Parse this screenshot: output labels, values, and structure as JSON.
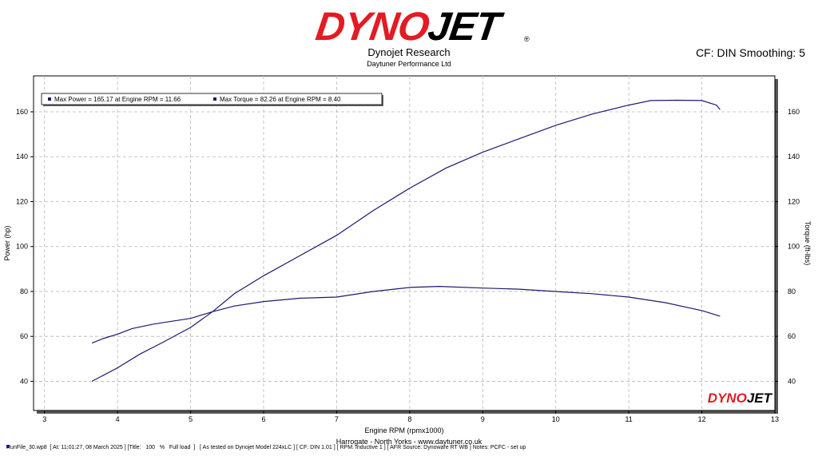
{
  "header": {
    "brand": "DYNOJET",
    "company": "Dynojet Research",
    "subcompany": "Daytuner Performance Ltd",
    "settings": "CF: DIN Smoothing: 5"
  },
  "footer": {
    "location": "Harrogate - North Yorks - www.daytuner.co.uk",
    "info": "RunFile_30.wp8  [ At: 11:01:27, 08 March 2025 ] [Title:   100   %   Full load  ]   [ As tested on Dynojet Model 224xLC ] [ CF: DIN 1.01 ] [ RPM: Inductive 1 ] [ AFR Source: Dynoware RT WB ] Notes: PCFC - set up"
  },
  "colors": {
    "brand_red": "#e31b23",
    "series": "#1a1a6e",
    "grid": "#b8b8b8"
  },
  "chart_data": {
    "type": "line",
    "xlabel": "Engine RPM (rpmx1000)",
    "ylabel_left": "Power (hp)",
    "ylabel_right": "Torque (ft-lbs)",
    "xlim": [
      2.85,
      13
    ],
    "ylim": [
      27,
      176
    ],
    "x_ticks": [
      3,
      4,
      5,
      6,
      7,
      8,
      9,
      10,
      11,
      12,
      13
    ],
    "y_ticks": [
      40,
      60,
      80,
      100,
      120,
      140,
      160
    ],
    "grid": true,
    "legend_position": "top-left",
    "legend": [
      "Max Power = 165.17 at Engine RPM = 11.66",
      "Max Torque = 82.26 at Engine RPM = 8.40"
    ],
    "series": [
      {
        "axis": "left",
        "x": [
          3.65,
          4.0,
          4.3,
          4.6,
          5.0,
          5.3,
          5.6,
          6.0,
          6.5,
          7.0,
          7.5,
          8.0,
          8.5,
          9.0,
          9.5,
          10.0,
          10.5,
          11.0,
          11.3,
          11.66,
          12.0,
          12.2,
          12.25
        ],
        "y": [
          40,
          46,
          52,
          57,
          64,
          71,
          79,
          87,
          96,
          105,
          116,
          126,
          135,
          142,
          148,
          154,
          159,
          163,
          165,
          165.17,
          165,
          163,
          161
        ]
      },
      {
        "axis": "right",
        "x": [
          3.65,
          3.8,
          4.0,
          4.2,
          4.5,
          5.0,
          5.3,
          5.6,
          6.0,
          6.5,
          7.0,
          7.5,
          8.0,
          8.4,
          9.0,
          9.5,
          10.0,
          10.5,
          11.0,
          11.5,
          12.0,
          12.25
        ],
        "y": [
          57,
          59,
          61,
          63.5,
          65.5,
          68,
          71,
          73.5,
          75.5,
          77,
          77.5,
          80,
          81.8,
          82.26,
          81.5,
          81,
          80,
          79,
          77.5,
          75,
          71.5,
          69
        ]
      }
    ]
  }
}
